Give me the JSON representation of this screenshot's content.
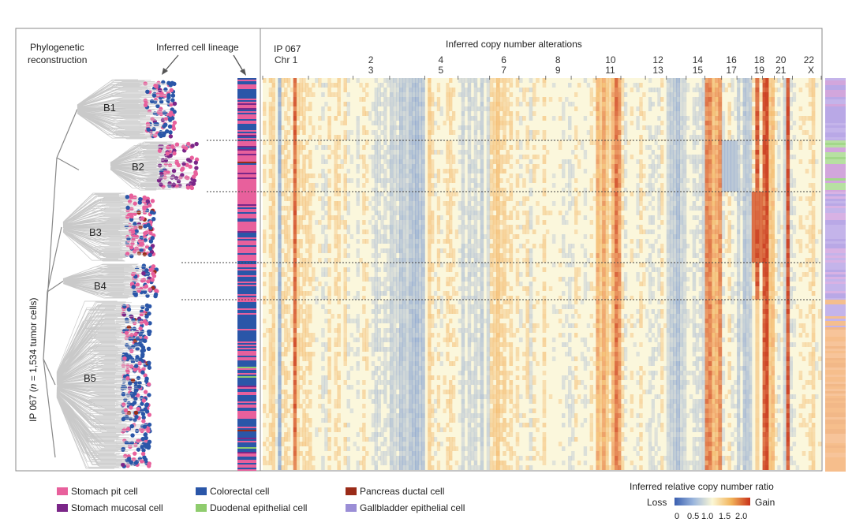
{
  "panel": {
    "left_title_line1": "Phylogenetic",
    "left_title_line2": "reconstruction",
    "lineage_title": "Inferred cell lineage",
    "heatmap_title": "Inferred copy number alterations",
    "sample_label": "IP  067",
    "y_axis_label_prefix": "IP  067 (",
    "y_axis_label_n": "n",
    "y_axis_label_suffix": " = 1,534 tumor cells)"
  },
  "chromosomes": {
    "upper_row": [
      "Chr 1",
      "2",
      "4",
      "6",
      "8",
      "10",
      "12",
      "14",
      "16",
      "18",
      "20",
      "22"
    ],
    "lower_row": [
      "3",
      "5",
      "7",
      "9",
      "11",
      "13",
      "15",
      "17",
      "19",
      "21",
      "X"
    ]
  },
  "clades": [
    "B1",
    "B2",
    "B3",
    "B4",
    "B5"
  ],
  "legend": {
    "items": [
      {
        "label": "Stomach pit cell",
        "color": "#e8609c"
      },
      {
        "label": "Colorectal cell",
        "color": "#2a56a8"
      },
      {
        "label": "Pancreas ductal cell",
        "color": "#9a2b18"
      },
      {
        "label": "Stomach mucosal cell",
        "color": "#7b2688"
      },
      {
        "label": "Duodenal epithelial cell",
        "color": "#8fcc6e"
      },
      {
        "label": "Gallbladder epithelial cell",
        "color": "#9b8ed6"
      }
    ]
  },
  "colorbar": {
    "title": "Inferred relative copy number ratio",
    "loss_label": "Loss",
    "gain_label": "Gain",
    "ticks": [
      "0",
      "0.5",
      "1.0",
      "1.5",
      "2.0"
    ],
    "colors": [
      "#3a5fb0",
      "#9bb6dd",
      "#fbf7d6",
      "#f2b45a",
      "#c9321a"
    ]
  },
  "chart_data": {
    "type": "heatmap",
    "title": "Inferred copy number alterations",
    "xlabel": "Chromosome",
    "ylabel": "IP 067 (n = 1,534 tumor cells)",
    "x_categories": [
      "1",
      "2",
      "3",
      "4",
      "5",
      "6",
      "7",
      "8",
      "9",
      "10",
      "11",
      "12",
      "13",
      "14",
      "15",
      "16",
      "17",
      "18",
      "19",
      "20",
      "21",
      "22",
      "X"
    ],
    "row_groups": [
      "B1",
      "B2",
      "B3",
      "B4",
      "B5"
    ],
    "value_range": [
      0,
      2.0
    ],
    "n_cells": 1534
  }
}
